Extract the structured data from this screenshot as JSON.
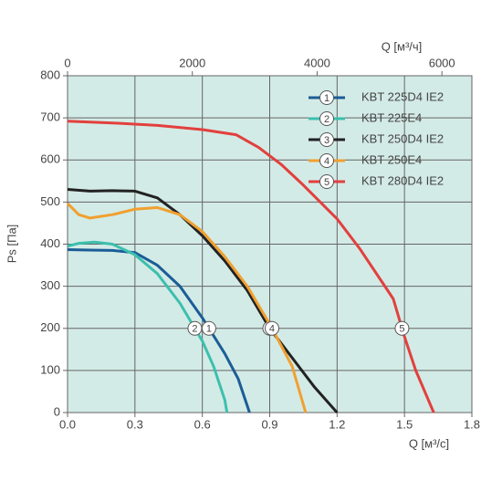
{
  "chart_data": {
    "type": "line",
    "x_label": "Q [м³/с]",
    "y_label": "Ps [Па]",
    "x2_label": "Q [м³/ч]",
    "xlim": [
      0,
      1.8
    ],
    "xticks": [
      {
        "value": 0,
        "label": "0.0"
      },
      0.3,
      0.6,
      0.9,
      1.2,
      1.5,
      1.8
    ],
    "x2lim": [
      0,
      6480
    ],
    "x2ticks": [
      0,
      2000,
      4000,
      6000
    ],
    "ylim": [
      0,
      800
    ],
    "yticks": [
      0,
      100,
      200,
      300,
      400,
      500,
      600,
      700,
      800
    ],
    "grid": true,
    "background": "#d3ebe6",
    "legend": "top-right",
    "series": [
      {
        "label": "1",
        "name": "KBT 225D4 IE2",
        "color": "#1b5d97",
        "x": [
          0,
          0.1,
          0.2,
          0.3,
          0.4,
          0.5,
          0.6,
          0.7,
          0.76,
          0.81
        ],
        "values": [
          387,
          386,
          385,
          380,
          350,
          300,
          225,
          140,
          80,
          0
        ]
      },
      {
        "label": "2",
        "name": "KBT 225E4",
        "color": "#3cbfae",
        "x": [
          0,
          0.05,
          0.12,
          0.2,
          0.3,
          0.4,
          0.5,
          0.6,
          0.65,
          0.7,
          0.71
        ],
        "values": [
          395,
          402,
          405,
          400,
          375,
          330,
          260,
          170,
          110,
          30,
          0
        ]
      },
      {
        "label": "3",
        "name": "KBT 250D4 IE2",
        "color": "#222222",
        "x": [
          0,
          0.1,
          0.2,
          0.3,
          0.4,
          0.5,
          0.6,
          0.7,
          0.8,
          0.9,
          1.0,
          1.1,
          1.2
        ],
        "values": [
          530,
          526,
          527,
          526,
          510,
          470,
          420,
          360,
          290,
          200,
          130,
          60,
          0
        ]
      },
      {
        "label": "4",
        "name": "KBT 250E4",
        "color": "#f0a030",
        "x": [
          0,
          0.05,
          0.1,
          0.2,
          0.3,
          0.4,
          0.5,
          0.6,
          0.7,
          0.8,
          0.9,
          1.0,
          1.06
        ],
        "values": [
          497,
          470,
          462,
          470,
          483,
          487,
          470,
          430,
          370,
          300,
          210,
          110,
          0
        ]
      },
      {
        "label": "5",
        "name": "KBT 280D4 IE2",
        "color": "#e2403e",
        "x": [
          0,
          0.2,
          0.4,
          0.6,
          0.75,
          0.85,
          0.95,
          1.05,
          1.2,
          1.3,
          1.4,
          1.45,
          1.5,
          1.55,
          1.63
        ],
        "values": [
          692,
          688,
          682,
          672,
          660,
          630,
          590,
          540,
          460,
          390,
          310,
          270,
          180,
          100,
          0
        ]
      }
    ]
  }
}
